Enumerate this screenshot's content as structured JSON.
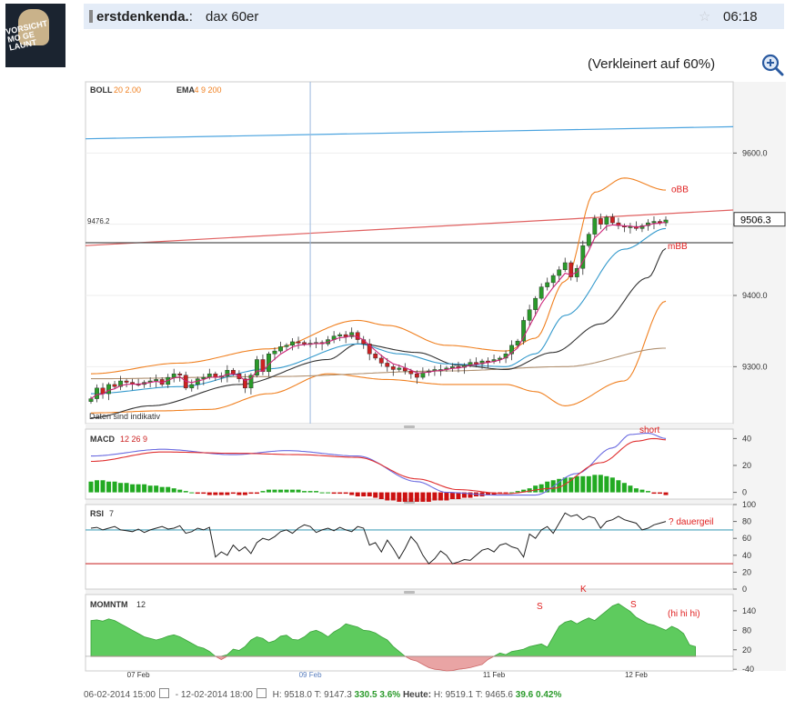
{
  "header": {
    "user": "erstdenkenda.",
    "separator": ":",
    "topic": "dax 60er",
    "time": "06:18",
    "shrink_note": "(Verkleinert auf 60%)"
  },
  "avatar": {
    "text": "VORSICHT\nMO GE\nLAUNT"
  },
  "colors": {
    "header_bg": "#e4ecf7",
    "price_line": "#000000",
    "bb": "#f08020",
    "ema_fast": "#cc2277",
    "ema_mid": "#3399cc",
    "ema_slow": "#333333",
    "ema_long": "#b09070",
    "up_candle": "#2a9a2a",
    "down_candle": "#cc2222",
    "annotation": "#e02020"
  },
  "chart_data": [
    {
      "type": "candlestick",
      "panel": "price",
      "legend": [
        {
          "name": "BOLL",
          "params": "20 2.00"
        },
        {
          "name": "EMA",
          "params": "4 9 200"
        }
      ],
      "ylim": [
        9220,
        9700
      ],
      "yticks": [
        9300,
        9400,
        9500,
        9600
      ],
      "ytick_labels": [
        "9300.0",
        "9400.0",
        "",
        "9600.0"
      ],
      "last_price_label": "9506.3",
      "last_price": 9506.3,
      "left_label": "9476.2",
      "note": "Daten sind indikativ",
      "annotations": [
        {
          "text": "oBB",
          "y": 9550
        },
        {
          "text": "mBB",
          "y": 9470
        }
      ],
      "close": [
        9255,
        9270,
        9262,
        9275,
        9272,
        9280,
        9278,
        9276,
        9275,
        9278,
        9280,
        9282,
        9275,
        9285,
        9290,
        9288,
        9270,
        9275,
        9283,
        9285,
        9290,
        9285,
        9287,
        9295,
        9290,
        9283,
        9270,
        9288,
        9310,
        9293,
        9318,
        9322,
        9328,
        9330,
        9335,
        9334,
        9332,
        9333,
        9334,
        9332,
        9338,
        9343,
        9345,
        9342,
        9348,
        9338,
        9332,
        9318,
        9312,
        9305,
        9300,
        9296,
        9298,
        9294,
        9290,
        9285,
        9292,
        9294,
        9296,
        9296,
        9298,
        9300,
        9299,
        9302,
        9306,
        9304,
        9308,
        9307,
        9310,
        9312,
        9318,
        9330,
        9336,
        9365,
        9380,
        9396,
        9412,
        9418,
        9428,
        9436,
        9446,
        9426,
        9438,
        9470,
        9486,
        9508,
        9500,
        9510,
        9502,
        9498,
        9496,
        9497,
        9494,
        9498,
        9502,
        9504,
        9502,
        9506
      ],
      "bb_upper_pts": [
        [
          0,
          9290
        ],
        [
          15,
          9305
        ],
        [
          30,
          9325
        ],
        [
          45,
          9365
        ],
        [
          50,
          9358
        ],
        [
          60,
          9330
        ],
        [
          70,
          9322
        ],
        [
          75,
          9340
        ],
        [
          80,
          9420
        ],
        [
          85,
          9545
        ],
        [
          90,
          9565
        ],
        [
          97,
          9548
        ]
      ],
      "bb_mid_pts": [
        [
          0,
          9262
        ],
        [
          15,
          9272
        ],
        [
          30,
          9297
        ],
        [
          45,
          9332
        ],
        [
          52,
          9318
        ],
        [
          60,
          9304
        ],
        [
          70,
          9300
        ],
        [
          75,
          9318
        ],
        [
          80,
          9372
        ],
        [
          90,
          9465
        ],
        [
          97,
          9494
        ]
      ],
      "bb_lower_pts": [
        [
          0,
          9235
        ],
        [
          12,
          9238
        ],
        [
          20,
          9240
        ],
        [
          30,
          9262
        ],
        [
          40,
          9290
        ],
        [
          50,
          9282
        ],
        [
          60,
          9275
        ],
        [
          70,
          9275
        ],
        [
          75,
          9265
        ],
        [
          80,
          9245
        ],
        [
          90,
          9280
        ],
        [
          97,
          9392
        ]
      ],
      "ema_long_pts": [
        [
          0,
          9283
        ],
        [
          30,
          9286
        ],
        [
          60,
          9294
        ],
        [
          80,
          9300
        ],
        [
          97,
          9326
        ]
      ],
      "ema_slow_pts": [
        [
          0,
          9228
        ],
        [
          10,
          9245
        ],
        [
          25,
          9275
        ],
        [
          40,
          9310
        ],
        [
          45,
          9332
        ],
        [
          55,
          9320
        ],
        [
          62,
          9302
        ],
        [
          70,
          9296
        ],
        [
          78,
          9320
        ],
        [
          86,
          9360
        ],
        [
          94,
          9425
        ],
        [
          97,
          9466
        ]
      ],
      "trend_blue_pts": [
        [
          0,
          9620
        ],
        [
          97,
          9637
        ]
      ],
      "trend_red_pts": [
        [
          0,
          9470
        ],
        [
          97,
          9520
        ]
      ],
      "hline": 9474
    },
    {
      "type": "line+bar",
      "panel": "macd",
      "legend": [
        {
          "name": "MACD",
          "params": "12 26 9"
        }
      ],
      "ylim": [
        -5,
        47
      ],
      "yticks": [
        0,
        20,
        40
      ],
      "ytick_labels": [
        "0",
        "20",
        "40"
      ],
      "annotation": "short",
      "macd_pts": [
        [
          0,
          27
        ],
        [
          12,
          32
        ],
        [
          24,
          28
        ],
        [
          33,
          31
        ],
        [
          45,
          27
        ],
        [
          55,
          8
        ],
        [
          60,
          0
        ],
        [
          68,
          -2
        ],
        [
          75,
          -2
        ],
        [
          82,
          14
        ],
        [
          88,
          33
        ],
        [
          91,
          43
        ],
        [
          94,
          44
        ],
        [
          97,
          40
        ]
      ],
      "signal_pts": [
        [
          0,
          23
        ],
        [
          12,
          30
        ],
        [
          25,
          29
        ],
        [
          35,
          28
        ],
        [
          45,
          26
        ],
        [
          55,
          10
        ],
        [
          62,
          2
        ],
        [
          70,
          -1
        ],
        [
          78,
          3
        ],
        [
          86,
          22
        ],
        [
          92,
          38
        ],
        [
          95,
          40
        ],
        [
          97,
          39
        ]
      ],
      "hist": [
        8,
        9,
        9,
        8,
        8,
        7,
        7,
        6,
        6,
        6,
        5,
        5,
        4,
        4,
        3,
        2,
        1,
        0,
        -1,
        -1,
        -2,
        -2,
        -2,
        -2,
        -1,
        -2,
        -2,
        -1,
        -1,
        1,
        2,
        2,
        2,
        2,
        2,
        2,
        1,
        1,
        1,
        0,
        0,
        -1,
        -1,
        -1,
        -2,
        -3,
        -3,
        -3,
        -4,
        -5,
        -6,
        -6,
        -7,
        -7,
        -7,
        -7,
        -7,
        -7,
        -6,
        -6,
        -6,
        -5,
        -5,
        -4,
        -4,
        -3,
        -3,
        -2,
        -2,
        -1,
        -1,
        0,
        1,
        2,
        3,
        5,
        6,
        8,
        9,
        10,
        11,
        11,
        12,
        12,
        12,
        13,
        13,
        12,
        11,
        9,
        7,
        5,
        3,
        2,
        1,
        -1,
        -1,
        -2
      ]
    },
    {
      "type": "line",
      "panel": "rsi",
      "legend": [
        {
          "name": "RSI",
          "params": "7"
        }
      ],
      "ylim": [
        0,
        100
      ],
      "yticks": [
        0,
        20,
        40,
        60,
        80,
        100
      ],
      "ytick_labels": [
        "0",
        "20",
        "40",
        "60",
        "80",
        "100"
      ],
      "levels": [
        70,
        30
      ],
      "annotation": "? dauergeil",
      "values": [
        72,
        73,
        70,
        72,
        74,
        70,
        69,
        68,
        71,
        67,
        70,
        72,
        74,
        71,
        72,
        75,
        66,
        68,
        72,
        70,
        73,
        38,
        44,
        40,
        52,
        45,
        50,
        42,
        55,
        60,
        58,
        62,
        68,
        70,
        66,
        72,
        76,
        74,
        67,
        70,
        72,
        69,
        73,
        70,
        68,
        74,
        72,
        52,
        55,
        44,
        58,
        48,
        36,
        48,
        62,
        54,
        40,
        30,
        36,
        45,
        40,
        30,
        32,
        35,
        34,
        40,
        46,
        48,
        44,
        52,
        54,
        50,
        48,
        38,
        65,
        60,
        70,
        74,
        66,
        78,
        90,
        86,
        88,
        82,
        86,
        84,
        72,
        80,
        82,
        86,
        82,
        80,
        78,
        70,
        72,
        76,
        78,
        80
      ]
    },
    {
      "type": "area",
      "panel": "momentum",
      "legend": [
        {
          "name": "MOMNTM",
          "params": "12"
        }
      ],
      "ylim": [
        -45,
        190
      ],
      "yticks": [
        -40,
        20,
        80,
        140
      ],
      "ytick_labels": [
        "-40",
        "20",
        "80",
        "140"
      ],
      "annotations": [
        {
          "text": "S",
          "index": 81
        },
        {
          "text": "K",
          "index": 88
        },
        {
          "text": "S",
          "index": 94
        },
        {
          "text": "(hi hi hi)",
          "index": 102
        }
      ],
      "values": [
        110,
        112,
        108,
        115,
        110,
        100,
        90,
        80,
        70,
        60,
        55,
        50,
        55,
        62,
        66,
        60,
        50,
        40,
        30,
        25,
        15,
        0,
        -10,
        5,
        22,
        18,
        30,
        50,
        60,
        55,
        42,
        48,
        62,
        65,
        52,
        50,
        60,
        75,
        80,
        72,
        60,
        75,
        85,
        100,
        95,
        90,
        80,
        78,
        72,
        60,
        50,
        30,
        15,
        0,
        -10,
        -15,
        -25,
        -35,
        -40,
        -42,
        -45,
        -44,
        -40,
        -38,
        -35,
        -30,
        -25,
        -10,
        0,
        10,
        5,
        15,
        18,
        22,
        30,
        34,
        38,
        28,
        60,
        92,
        105,
        110,
        100,
        110,
        118,
        110,
        125,
        140,
        155,
        162,
        150,
        138,
        120,
        110,
        100,
        96,
        88,
        80,
        92,
        84,
        70,
        35,
        30
      ]
    }
  ],
  "x_axis": {
    "labels": [
      {
        "text": "07 Feb",
        "index": 8
      },
      {
        "text": "09 Feb",
        "index": 37
      },
      {
        "text": "11 Feb",
        "index": 68
      },
      {
        "text": "12 Feb",
        "index": 92
      }
    ],
    "cursor_index": 37
  },
  "stats": {
    "from": "06-02-2014 15:00",
    "dash": "-",
    "to": "12-02-2014 18:00",
    "high": "H: 9518.0",
    "low": "T: 9147.3",
    "change": "330.5",
    "change_pct": "3.6%",
    "today_label": "Heute:",
    "today_high": "H: 9519.1",
    "today_low": "T: 9465.6",
    "today_change": "39.6",
    "today_pct": "0.42%"
  }
}
